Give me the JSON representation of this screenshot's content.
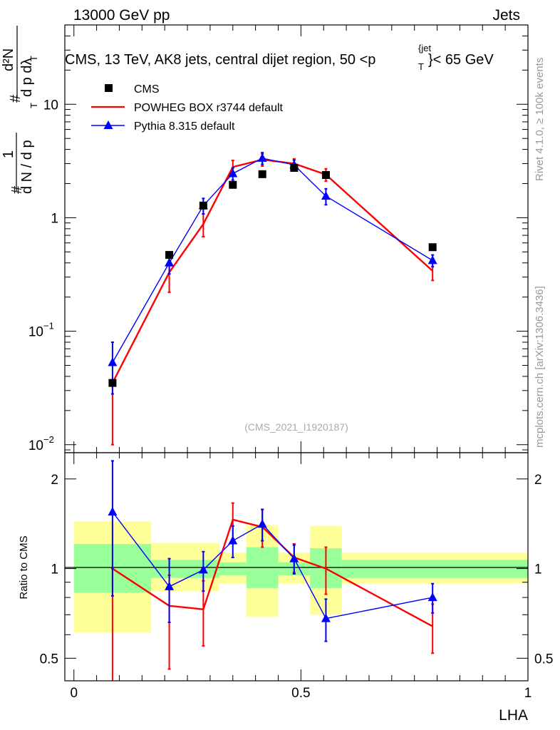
{
  "header": {
    "left": "13000 GeV pp",
    "right": "Jets"
  },
  "side_text": {
    "rivet": "Rivet 4.1.0, ≥ 100k events",
    "mcplots": "mcplots.cern.ch [arXiv:1306.3436]"
  },
  "colors": {
    "cms": "#000000",
    "powheg": "#ff0000",
    "pythia": "#0000ff",
    "band_inner": "#99ff99",
    "band_outer": "#ffff99"
  },
  "chart_data": [
    {
      "type": "line",
      "panel": "main",
      "title": "CMS, 13 TeV, AK8 jets, central dijet region, 50 <p_T^{jet}< 65 GeV",
      "title_parts": {
        "main": "CMS, 13 TeV, AK8 jets, central dijet region, 50 <p",
        "sub": "T",
        "sup": "{jet",
        "close": "}< 65 GeV"
      },
      "ylabel": "1/dN/dp_T dN/dp_T dλ",
      "ylabel_parts": {
        "hash1": "#",
        "one": "1",
        "dN": "d N / d p",
        "T": "T",
        "hash2": "#",
        "d2N": "d²N",
        "dpTdl": "d p  dλ",
        "T2": "T"
      },
      "yscale": "log",
      "ylim": [
        0.0085,
        50
      ],
      "xlim": [
        -0.02,
        1.0
      ],
      "yticks": [
        0.01,
        0.1,
        1,
        10
      ],
      "ytick_labels": [
        {
          "base": "10",
          "exp": "−2"
        },
        {
          "base": "10",
          "exp": "−1"
        },
        {
          "base": "1",
          "exp": ""
        },
        {
          "base": "10",
          "exp": ""
        }
      ],
      "watermark": "(CMS_2021_I1920187)",
      "legend": [
        {
          "name": "CMS",
          "style": "square"
        },
        {
          "name": "POWHEG BOX r3744 default",
          "style": "line"
        },
        {
          "name": "Pythia 8.315 default",
          "style": "triangle-line"
        }
      ],
      "series": [
        {
          "name": "CMS",
          "x": [
            0.085,
            0.21,
            0.285,
            0.35,
            0.415,
            0.485,
            0.555,
            0.79
          ],
          "y": [
            0.035,
            0.47,
            1.28,
            1.95,
            2.42,
            2.75,
            2.38,
            0.55
          ]
        },
        {
          "name": "POWHEG BOX r3744 default",
          "x": [
            0.085,
            0.21,
            0.285,
            0.35,
            0.415,
            0.485,
            0.555,
            0.79
          ],
          "y": [
            0.035,
            0.33,
            0.88,
            2.8,
            3.25,
            3.0,
            2.4,
            0.34
          ],
          "err_lo": [
            0.025,
            0.11,
            0.2,
            0.4,
            0.4,
            0.3,
            0.3,
            0.06
          ],
          "err_hi": [
            0.0,
            0.11,
            0.2,
            0.4,
            0.4,
            0.3,
            0.3,
            0.06
          ]
        },
        {
          "name": "Pythia 8.315 default",
          "x": [
            0.085,
            0.21,
            0.285,
            0.35,
            0.415,
            0.485,
            0.555,
            0.79
          ],
          "y": [
            0.053,
            0.4,
            1.28,
            2.45,
            3.35,
            2.92,
            1.55,
            0.42
          ],
          "err_lo": [
            0.025,
            0.08,
            0.2,
            0.3,
            0.4,
            0.3,
            0.25,
            0.05
          ],
          "err_hi": [
            0.027,
            0.08,
            0.2,
            0.3,
            0.4,
            0.3,
            0.25,
            0.05
          ]
        }
      ]
    },
    {
      "type": "line",
      "panel": "ratio",
      "ylabel": "Ratio to CMS",
      "xlabel": "LHA",
      "yscale": "log",
      "ylim": [
        0.42,
        2.45
      ],
      "xlim": [
        -0.02,
        1.0
      ],
      "yticks": [
        0.5,
        1,
        2
      ],
      "ytick_labels": [
        "0.5",
        "1",
        "2"
      ],
      "xticks": [
        0,
        0.5,
        1
      ],
      "xtick_labels": [
        "0",
        "0.5",
        "1"
      ],
      "bands": {
        "edges": [
          0.0,
          0.17,
          0.25,
          0.32,
          0.38,
          0.45,
          0.52,
          0.59,
          1.0
        ],
        "inner_lo": [
          0.83,
          0.93,
          0.93,
          0.95,
          0.86,
          0.95,
          0.86,
          0.93
        ],
        "inner_hi": [
          1.21,
          1.07,
          1.07,
          1.05,
          1.18,
          1.05,
          1.17,
          1.07
        ],
        "outer_lo": [
          0.61,
          0.84,
          0.84,
          0.89,
          0.69,
          0.89,
          0.7,
          0.89
        ],
        "outer_hi": [
          1.44,
          1.22,
          1.22,
          1.13,
          1.4,
          1.13,
          1.39,
          1.13
        ]
      },
      "series": [
        {
          "name": "POWHEG BOX r3744 default",
          "x": [
            0.085,
            0.21,
            0.285,
            0.35,
            0.415,
            0.485,
            0.555,
            0.79
          ],
          "y": [
            1.0,
            0.75,
            0.73,
            1.46,
            1.38,
            1.09,
            1.0,
            0.64
          ],
          "err_lo": [
            0.6,
            0.29,
            0.18,
            0.2,
            0.2,
            0.12,
            0.18,
            0.12
          ],
          "err_hi": [
            0.0,
            0.2,
            0.18,
            0.2,
            0.2,
            0.12,
            0.18,
            0.12
          ]
        },
        {
          "name": "Pythia 8.315 default",
          "x": [
            0.085,
            0.21,
            0.285,
            0.35,
            0.415,
            0.485,
            0.555,
            0.79
          ],
          "y": [
            1.55,
            0.87,
            0.99,
            1.24,
            1.41,
            1.08,
            0.68,
            0.8
          ],
          "err_lo": [
            0.74,
            0.21,
            0.15,
            0.15,
            0.17,
            0.12,
            0.11,
            0.09
          ],
          "err_hi": [
            0.75,
            0.21,
            0.15,
            0.15,
            0.17,
            0.12,
            0.11,
            0.09
          ]
        }
      ]
    }
  ]
}
